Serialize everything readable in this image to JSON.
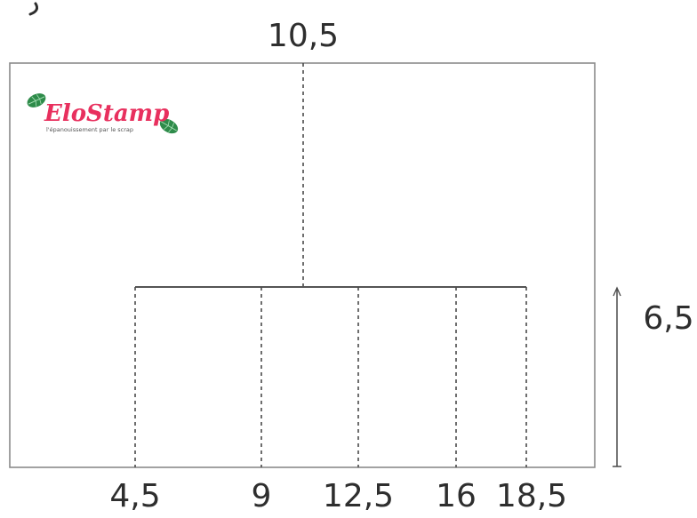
{
  "dimensions": {
    "top_center": "10,5",
    "right_height": "6,5",
    "bottom_marks": [
      "4,5",
      "9",
      "12,5",
      "16",
      "18,5"
    ]
  },
  "logo": {
    "title": "EloStamp",
    "tagline": "l'épanouissement par le scrap",
    "leaf_icon": "monstera-leaf-icon"
  },
  "colors": {
    "line": "#8a8a8a",
    "dashed": "#4a4a4a",
    "scoreline": "#555555",
    "text": "#2e2e2e",
    "logo_pink": "#e8305e",
    "leaf_green": "#2e8b4a"
  }
}
